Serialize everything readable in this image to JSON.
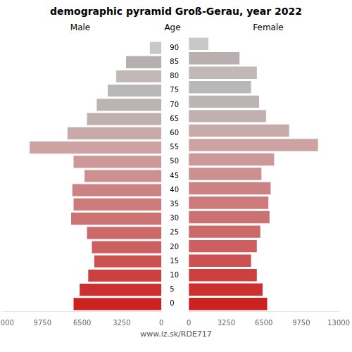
{
  "chart_data": {
    "type": "bar",
    "orientation": "horizontal",
    "title": "demographic pyramid Groß-Gerau, year 2022",
    "ylabel": "Age",
    "annotations": [
      "www.iz.sk/RDE717"
    ],
    "categories": [
      "0",
      "5",
      "10",
      "15",
      "20",
      "25",
      "30",
      "35",
      "40",
      "45",
      "50",
      "55",
      "60",
      "65",
      "70",
      "75",
      "80",
      "85",
      "90"
    ],
    "series": [
      {
        "name": "Male",
        "values": [
          7200,
          6700,
          6000,
          5500,
          5700,
          6100,
          7400,
          7200,
          7300,
          6300,
          7200,
          10800,
          7700,
          6100,
          5300,
          4400,
          3700,
          2900,
          950
        ],
        "colors": [
          "#cd2020",
          "#cd3030",
          "#cd4040",
          "#cd5050",
          "#cc6060",
          "#cc6a6a",
          "#cc7272",
          "#cc7a7a",
          "#cc8282",
          "#cc9090",
          "#cc9898",
          "#cca2a2",
          "#c8aaaa",
          "#c0b0b0",
          "#bcb4b4",
          "#b8b8b8",
          "#c2b8b8",
          "#b8b0b0",
          "#c8c8c8"
        ]
      },
      {
        "name": "Female",
        "values": [
          6800,
          6400,
          5900,
          5400,
          5900,
          6200,
          7000,
          6900,
          7100,
          6300,
          7400,
          11200,
          8700,
          6700,
          6100,
          5400,
          5900,
          4400,
          1700
        ],
        "colors": [
          "#cd2020",
          "#cd3030",
          "#cd4040",
          "#cd5050",
          "#cc6060",
          "#cc6a6a",
          "#cc7272",
          "#cc7a7a",
          "#cc8282",
          "#cc9090",
          "#cc9898",
          "#cca2a2",
          "#c8aaaa",
          "#c0b0b0",
          "#bcb4b4",
          "#b8b8b8",
          "#c2b8b8",
          "#b8b0b0",
          "#c8c8c8"
        ]
      }
    ],
    "xlim": [
      0,
      13000
    ],
    "xticks": [
      0,
      3250,
      6500,
      9750,
      13000
    ],
    "grid": false
  }
}
